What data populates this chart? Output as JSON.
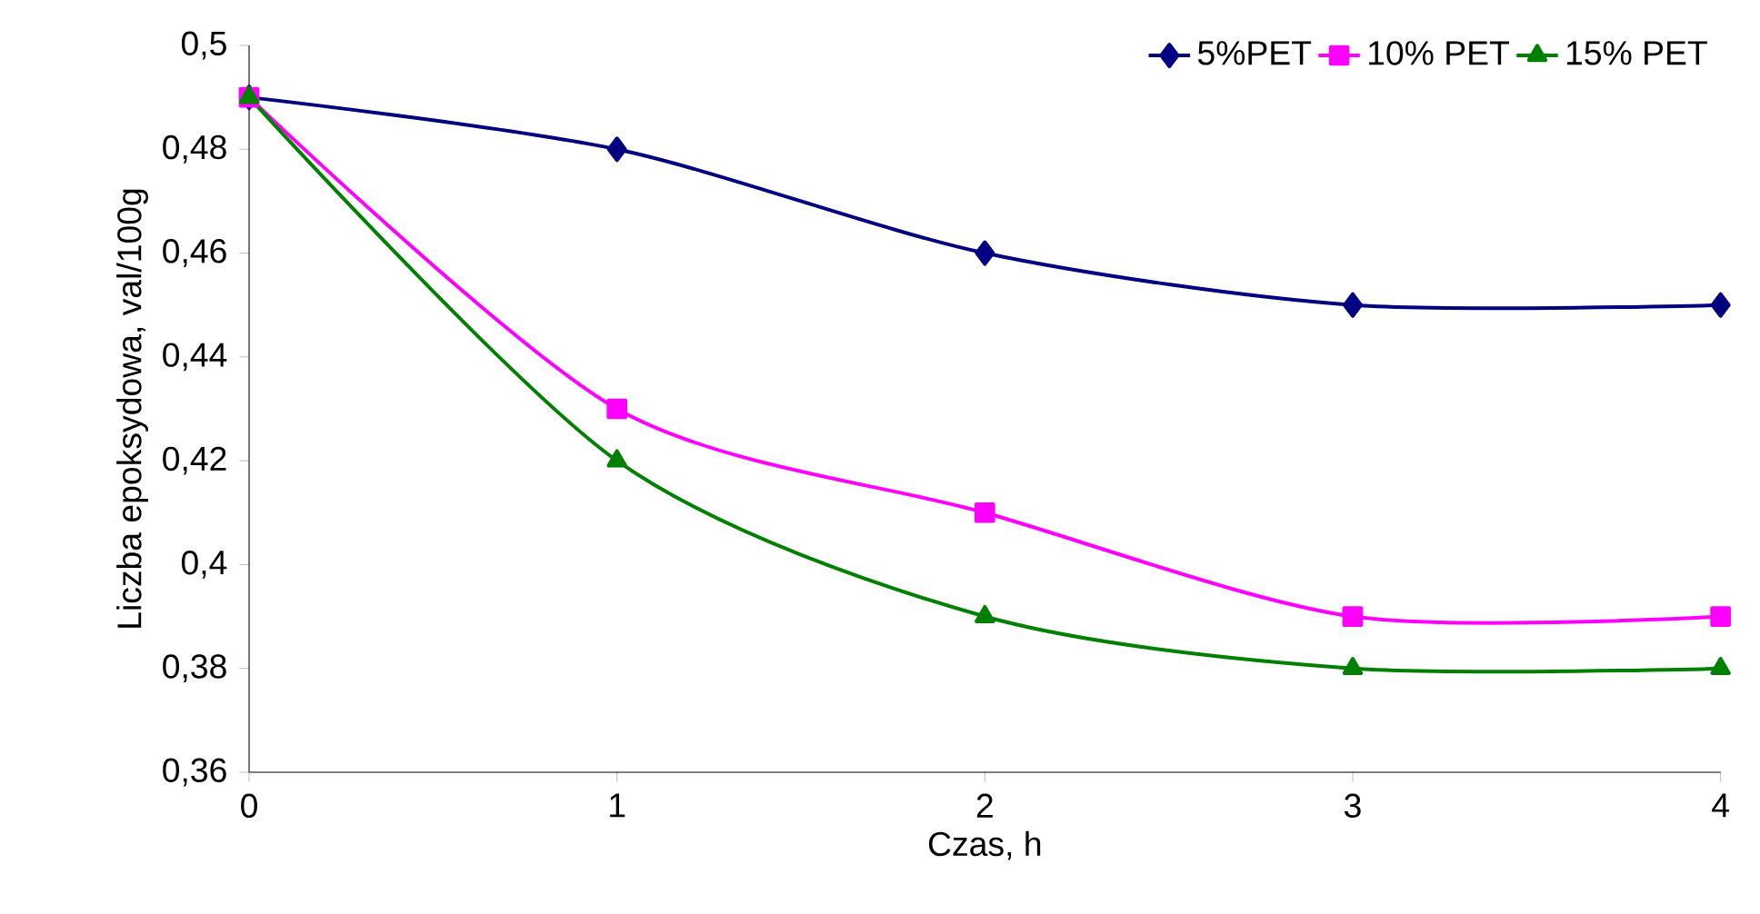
{
  "chart_data": {
    "type": "line",
    "xlabel": "Czas, h",
    "ylabel": "Liczba epoksydowa, val/100g",
    "x": [
      0,
      1,
      2,
      3,
      4
    ],
    "series": [
      {
        "name": "5%PET",
        "color": "#000080",
        "marker": "diamond",
        "values": [
          0.49,
          0.48,
          0.46,
          0.45,
          0.45
        ]
      },
      {
        "name": "10% PET",
        "color": "#ff00ff",
        "marker": "square",
        "values": [
          0.49,
          0.43,
          0.41,
          0.39,
          0.39
        ]
      },
      {
        "name": "15% PET",
        "color": "#008000",
        "marker": "triangle",
        "values": [
          0.49,
          0.42,
          0.39,
          0.38,
          0.38
        ]
      }
    ],
    "xlim": [
      0,
      4
    ],
    "xticks": [
      0,
      1,
      2,
      3,
      4
    ],
    "ylim": [
      0.36,
      0.5
    ],
    "yticks": [
      {
        "value": 0.36,
        "label": "0,36"
      },
      {
        "value": 0.38,
        "label": "0,38"
      },
      {
        "value": 0.4,
        "label": "0,4"
      },
      {
        "value": 0.42,
        "label": "0,42"
      },
      {
        "value": 0.44,
        "label": "0,44"
      },
      {
        "value": 0.46,
        "label": "0,46"
      },
      {
        "value": 0.48,
        "label": "0,48"
      },
      {
        "value": 0.5,
        "label": "0,5"
      }
    ],
    "legend": "top right",
    "grid": false,
    "line_style": "solid"
  }
}
